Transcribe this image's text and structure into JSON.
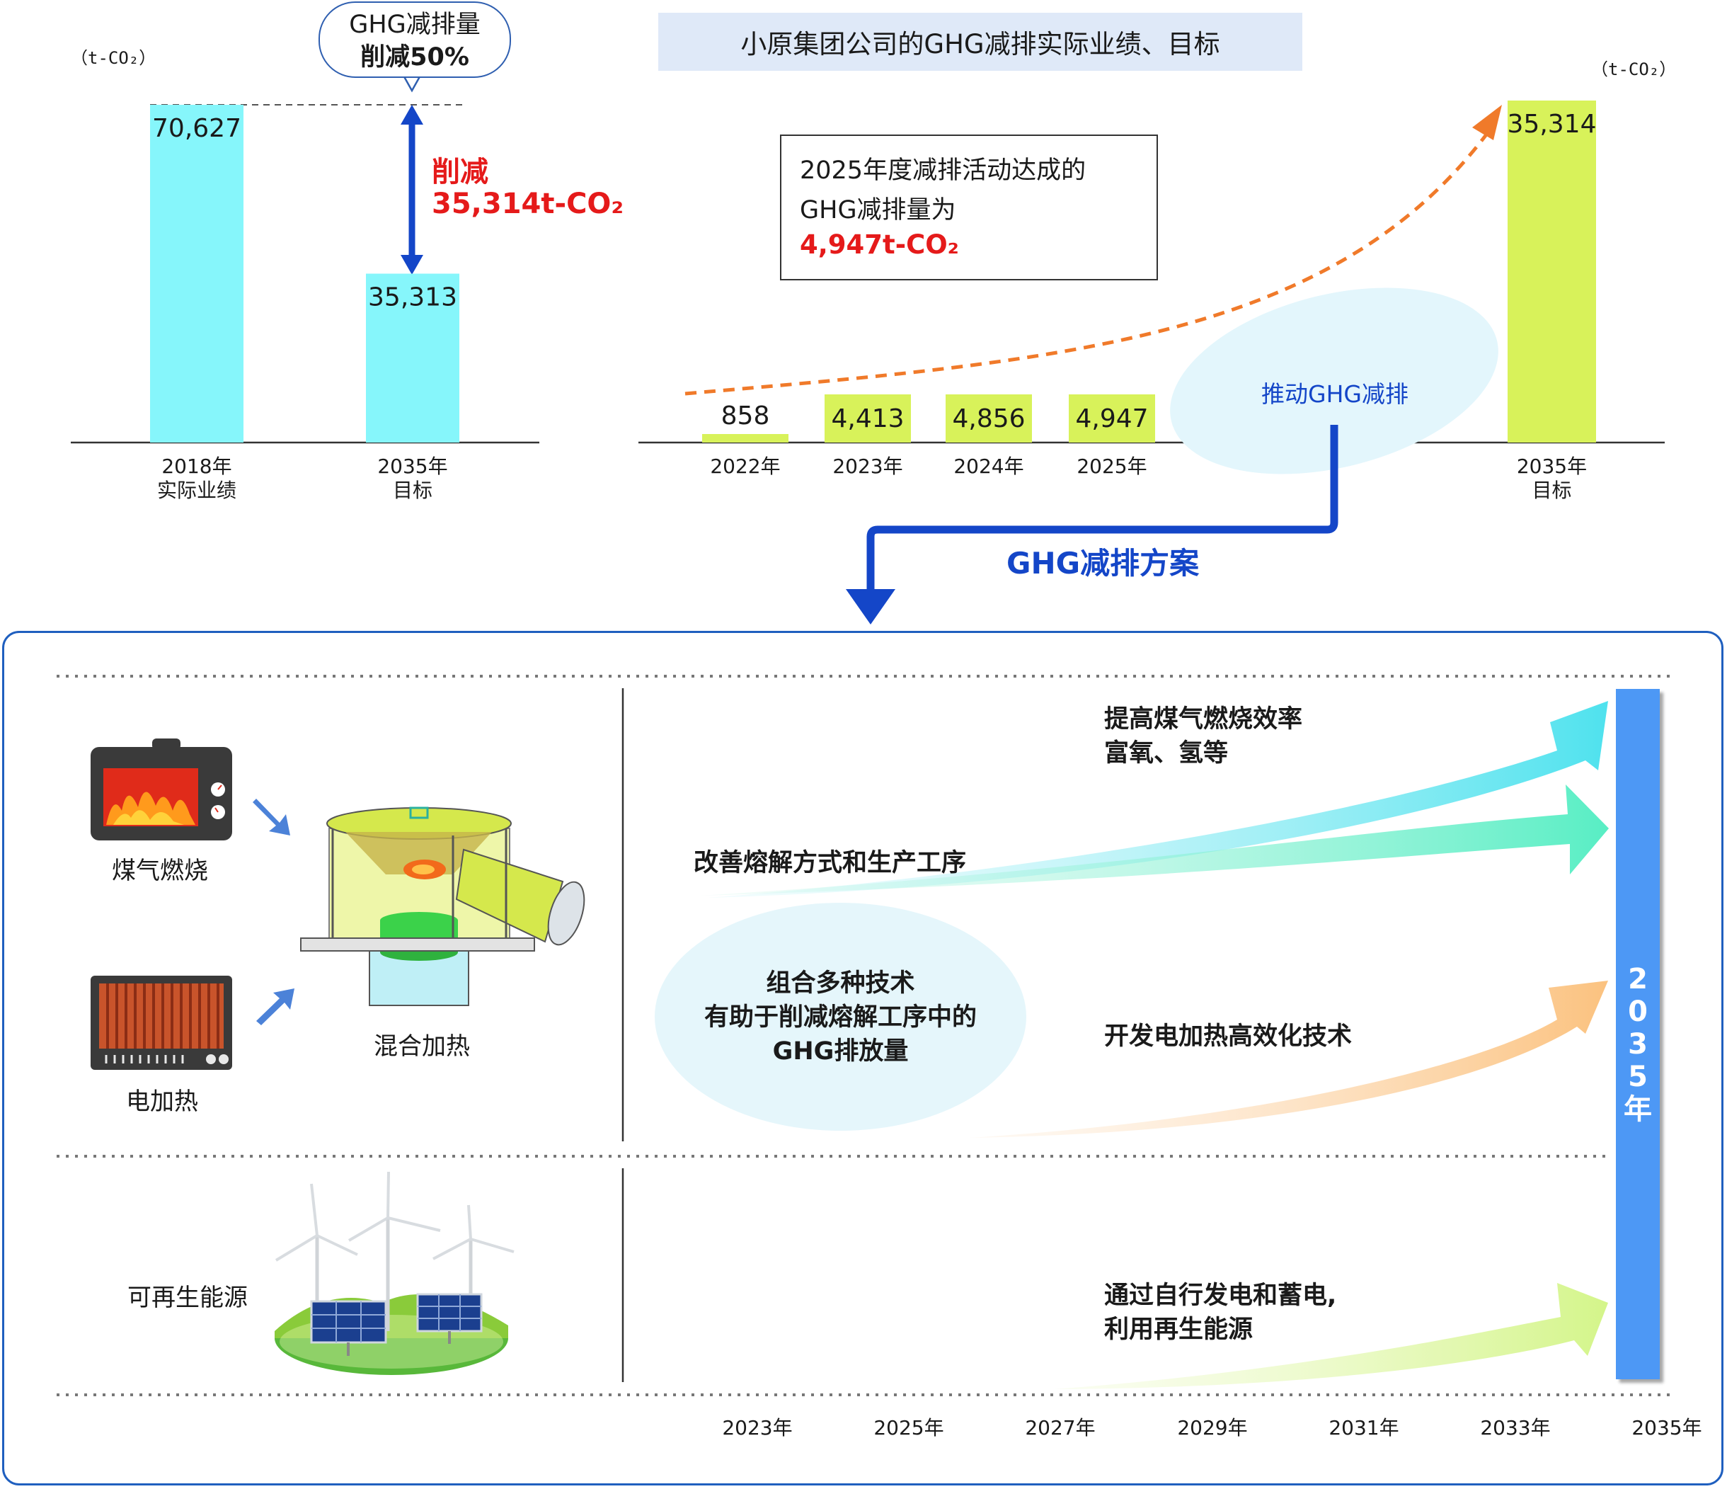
{
  "title": "小原集团公司的GHG减排实际业绩、目标",
  "left_chart": {
    "unit": "（t-CO₂）",
    "bars": [
      {
        "year": "2018年",
        "sub": "实际业绩",
        "value": 70627,
        "label": "70,627"
      },
      {
        "year": "2035年",
        "sub": "目标",
        "value": 35313,
        "label": "35,313"
      }
    ],
    "bubble_line1": "GHG减排量",
    "bubble_line2": "削减50%",
    "reduce_label": "削减",
    "reduce_value": "35,314t-CO₂"
  },
  "right_chart": {
    "unit": "（t-CO₂）",
    "bars": [
      {
        "year": "2022年",
        "sub": "",
        "value": 858,
        "label": "858"
      },
      {
        "year": "2023年",
        "sub": "",
        "value": 4413,
        "label": "4,413"
      },
      {
        "year": "2024年",
        "sub": "",
        "value": 4856,
        "label": "4,856"
      },
      {
        "year": "2025年",
        "sub": "",
        "value": 4947,
        "label": "4,947"
      },
      {
        "year": "2035年",
        "sub": "目标",
        "value": 35314,
        "label": "35,314"
      }
    ],
    "result_line1": "2025年度减排活动达成的",
    "result_line2": "GHG减排量为",
    "result_value": "4,947t-CO₂",
    "push_label": "推动GHG减排"
  },
  "plan_label": "GHG减排方案",
  "plan": {
    "left_labels": {
      "coal": "煤气燃烧",
      "electric": "电加热",
      "hybrid": "混合加热",
      "renewable": "可再生能源"
    },
    "arrows": {
      "a1_line1": "提高煤气燃烧效率",
      "a1_line2": "富氧、氢等",
      "a2": "改善熔解方式和生产工序",
      "a3": "开发电加热高效化技术",
      "a4_line1": "通过自行发电和蓄电,",
      "a4_line2": "利用再生能源"
    },
    "oval_line1": "组合多种技术",
    "oval_line2": "有助于削减熔解工序中的",
    "oval_line3": "GHG排放量",
    "year_bar": "2035年",
    "timeline": [
      "2023年",
      "2025年",
      "2027年",
      "2029年",
      "2031年",
      "2033年",
      "2035年"
    ]
  },
  "colors": {
    "left_bar": "#86f6fb",
    "right_bar": "#d8f25a",
    "accent_blue": "#1446c8",
    "accent_red": "#e51a1a",
    "trend_orange": "#f07a2a",
    "year_bar": "#4d98f5"
  }
}
